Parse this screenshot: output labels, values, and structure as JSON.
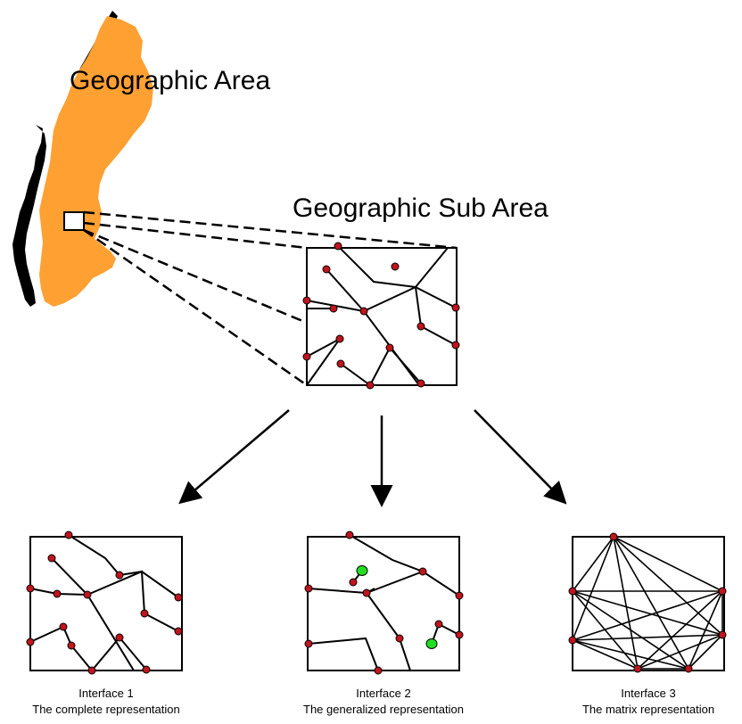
{
  "labels": {
    "area": "Geographic Area",
    "sub_area": "Geographic Sub Area"
  },
  "interfaces": [
    {
      "title": "Interface 1",
      "subtitle": "The complete representation"
    },
    {
      "title": "Interface 2",
      "subtitle": "The generalized representation"
    },
    {
      "title": "Interface 3",
      "subtitle": "The matrix representation"
    }
  ],
  "colors": {
    "map_fill": "#ffa033",
    "node_fill": "#c0141e",
    "highlight_node_fill": "#22dd22",
    "line": "#000000"
  }
}
